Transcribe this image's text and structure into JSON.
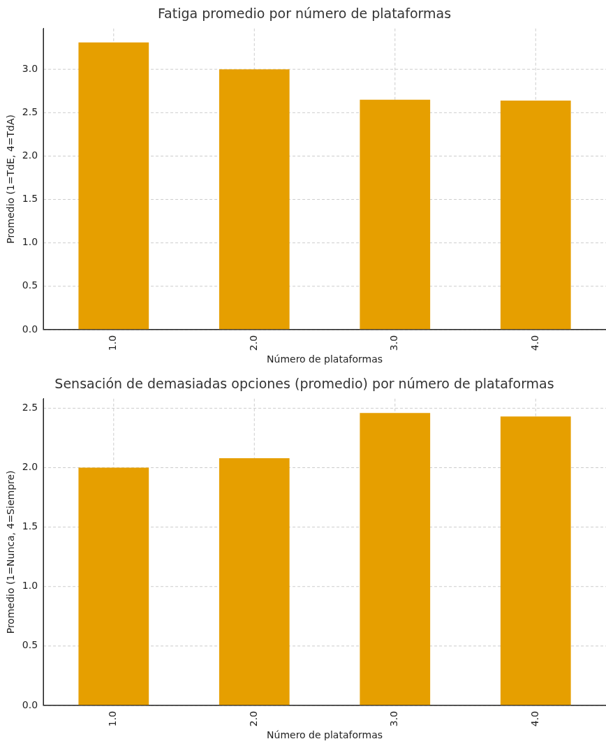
{
  "chart_data": [
    {
      "type": "bar",
      "title": "Fatiga promedio por número de plataformas",
      "xlabel": "Número de plataformas",
      "ylabel": "Promedio (1=TdE, 4=TdA)",
      "categories": [
        "1.0",
        "2.0",
        "3.0",
        "4.0"
      ],
      "values": [
        3.31,
        3.0,
        2.65,
        2.64
      ],
      "color": "#e69f00",
      "ylim": [
        0,
        3.47
      ],
      "yticks": [
        {
          "value": 0,
          "label": "0.0"
        },
        {
          "value": 0.5,
          "label": "0.5"
        },
        {
          "value": 1,
          "label": "1.0"
        },
        {
          "value": 1.5,
          "label": "1.5"
        },
        {
          "value": 2,
          "label": "2.0"
        },
        {
          "value": 2.5,
          "label": "2.5"
        },
        {
          "value": 3,
          "label": "3.0"
        }
      ],
      "grid": true
    },
    {
      "type": "bar",
      "title": "Sensación de demasiadas opciones (promedio) por número de plataformas",
      "xlabel": "Número de plataformas",
      "ylabel": "Promedio (1=Nunca, 4=Siempre)",
      "categories": [
        "1.0",
        "2.0",
        "3.0",
        "4.0"
      ],
      "values": [
        2.0,
        2.08,
        2.46,
        2.43
      ],
      "color": "#e69f00",
      "ylim": [
        0,
        2.58
      ],
      "yticks": [
        {
          "value": 0,
          "label": "0.0"
        },
        {
          "value": 0.5,
          "label": "0.5"
        },
        {
          "value": 1,
          "label": "1.0"
        },
        {
          "value": 1.5,
          "label": "1.5"
        },
        {
          "value": 2,
          "label": "2.0"
        },
        {
          "value": 2.5,
          "label": "2.5"
        }
      ],
      "grid": true
    }
  ]
}
